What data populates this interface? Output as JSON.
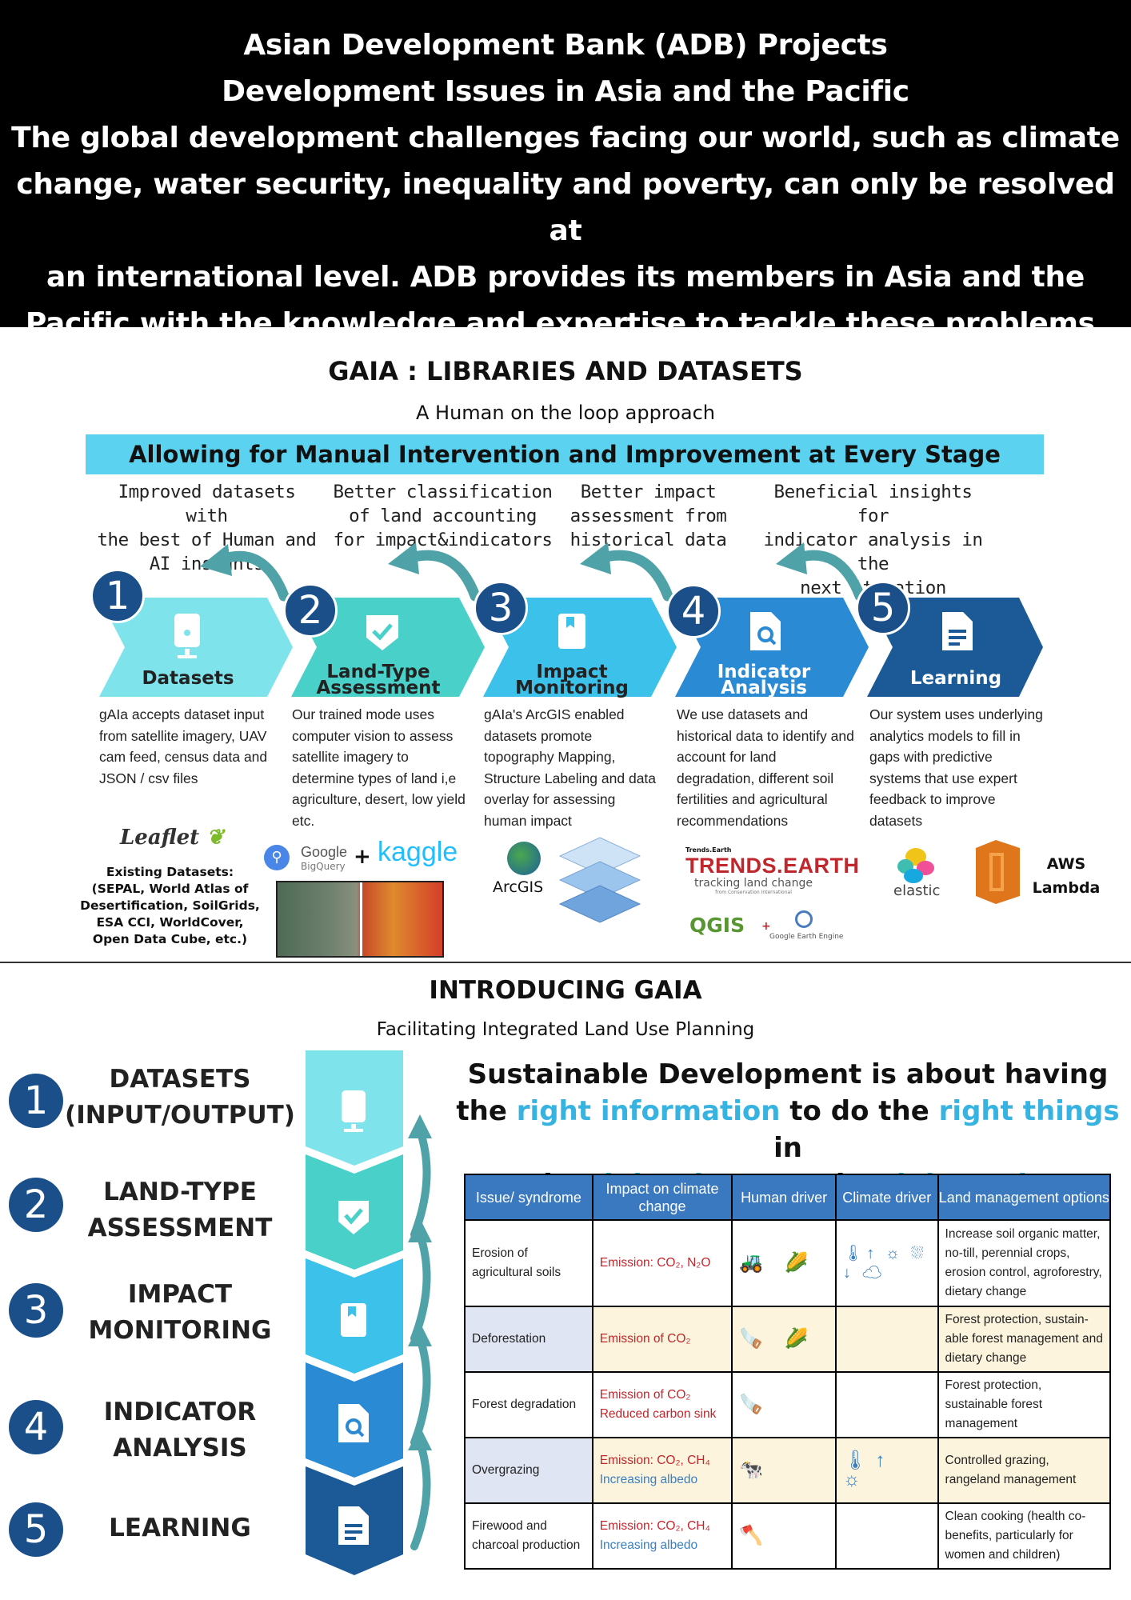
{
  "header": {
    "lines": [
      "Asian Development Bank (ADB) Projects",
      "Development Issues in Asia and the Pacific",
      "The global development challenges facing our world, such as climate",
      "change, water security, inequality and poverty, can only be resolved at",
      "an international level. ADB provides its members in Asia and the",
      "Pacific with the knowledge and expertise to tackle these problems."
    ]
  },
  "libraries": {
    "title": "GAIA : LIBRARIES AND DATASETS",
    "subtitle": "A Human on the loop approach",
    "banner": "Allowing for Manual Intervention and Improvement at Every Stage",
    "benefits": [
      [
        "Improved datasets with",
        "the best of Human and",
        "AI insights"
      ],
      [
        "Better classification",
        "of land accounting",
        "for impact&indicators"
      ],
      [
        "Better impact",
        "assessment from",
        "historical data"
      ],
      [
        "Beneficial insights for",
        "indicator analysis in the",
        "next iteration"
      ]
    ],
    "steps": [
      {
        "num": "1",
        "name": [
          "Datasets"
        ],
        "color": "#7fe3ec",
        "desc": "gAIa accepts dataset input from satellite imagery, UAV cam feed, census data and JSON / csv files",
        "icon": "device-icon"
      },
      {
        "num": "2",
        "name": [
          "Land-Type",
          "Assessment"
        ],
        "color": "#49d1c9",
        "desc": "Our trained mode uses computer vision to assess satellite imagery to determine types of land i,e agriculture, desert, low yield etc.",
        "icon": "check-shield-icon"
      },
      {
        "num": "3",
        "name": [
          "Impact",
          "Monitoring"
        ],
        "color": "#3cc1ea",
        "desc": "gAIa's ArcGIS enabled datasets promote topography Mapping, Structure Labeling and data overlay for assessing human impact",
        "icon": "bookmark-icon"
      },
      {
        "num": "4",
        "name": [
          "Indicator",
          "Analysis"
        ],
        "color": "#2a8ad4",
        "desc": "We use datasets and historical data to identify and account for land degradation, different soil fertilities and agricultural recommendations",
        "icon": "search-doc-icon"
      },
      {
        "num": "5",
        "name": [
          "Learning"
        ],
        "color": "#1b5a96",
        "desc": "Our system uses underlying analytics models to fill in gaps with predictive systems that use expert feedback to improve datasets",
        "icon": "document-icon"
      }
    ],
    "logos": {
      "leaflet": "Leaflet",
      "existing": "Existing Datasets: (SEPAL, World Atlas of Desertification, SoilGrids, ESA CCI, WorldCover, Open Data Cube, etc.)",
      "google": "Google",
      "bigquery": "BigQuery",
      "plus": "+",
      "kaggle": "kaggle",
      "arcgis": "ArcGIS",
      "trends_small": "Trends.Earth",
      "trends": "TRENDS.EARTH",
      "trends_tag": "tracking land change",
      "trends_from": "from Conservation International",
      "qgis": "QGIS",
      "gee": "Google Earth Engine",
      "elastic": "elastic",
      "aws": "AWS",
      "lambda": "Lambda"
    }
  },
  "intro": {
    "title": "INTRODUCING GAIA",
    "subtitle": "Facilitating Integrated Land Use Planning",
    "steps": [
      {
        "num": "1",
        "lines": [
          "DATASETS",
          "(INPUT/OUTPUT)"
        ]
      },
      {
        "num": "2",
        "lines": [
          "LAND-TYPE",
          "ASSESSMENT"
        ]
      },
      {
        "num": "3",
        "lines": [
          "IMPACT",
          "MONITORING"
        ]
      },
      {
        "num": "4",
        "lines": [
          "INDICATOR",
          "ANALYSIS"
        ]
      },
      {
        "num": "5",
        "lines": [
          "LEARNING"
        ]
      }
    ],
    "headline": {
      "p1": "Sustainable Development is about having",
      "p2": "the ",
      "h1": "right information",
      "p3": " to do the ",
      "h2": "right things",
      "p4": " in",
      "p5": "the ",
      "h3": "right places",
      "p6": " at the ",
      "h4": "right scale"
    },
    "table": {
      "headers": [
        "Issue/ syndrome",
        "Impact on climate change",
        "Human driver",
        "Climate driver",
        "Land management options"
      ],
      "rows": [
        {
          "issue": "Erosion of agricultural soils",
          "impact": "Emission: CO₂, N₂O",
          "impact2": "",
          "human": "🚜 🌽",
          "climate": "🌡↑ ☼ ⛆↓ ☁",
          "options": "Increase soil organic matter, no-till, perennial crops, erosion control, agroforestry, dietary change"
        },
        {
          "issue": "Deforestation",
          "impact": "Emission of CO₂",
          "impact2": "",
          "human": "🪚 🌽",
          "climate": "",
          "options": "Forest protection, sustain-able forest management and dietary change"
        },
        {
          "issue": "Forest degradation",
          "impact": "Emission of CO₂",
          "impact2": "Reduced carbon sink",
          "human": "🪚",
          "climate": "",
          "options": "Forest protection, sustainable forest management"
        },
        {
          "issue": "Overgrazing",
          "impact": "Emission: CO₂, CH₄",
          "impact2": "Increasing albedo",
          "human": "🐄",
          "climate": "🌡↑ ☼",
          "options": "Controlled grazing, rangeland management"
        },
        {
          "issue": "Firewood and charcoal production",
          "impact": "Emission: CO₂, CH₄",
          "impact2": "Increasing albedo",
          "human": "🪓",
          "climate": "",
          "options": "Clean cooking (health co-benefits, particularly for women and children)"
        }
      ]
    }
  }
}
